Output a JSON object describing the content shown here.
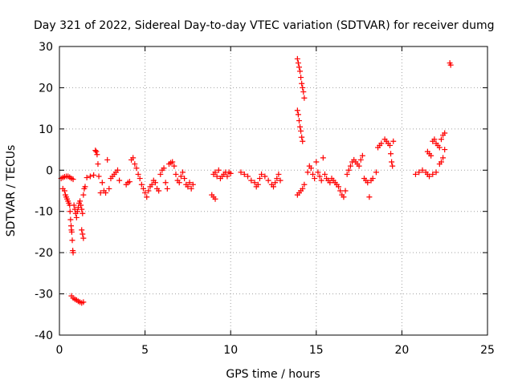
{
  "chart_data": {
    "type": "scatter",
    "title": "Day 321 of 2022, Sidereal Day-to-day VTEC variation (SDTVAR) for receiver dumg",
    "xlabel": "GPS time / hours",
    "ylabel": "SDTVAR / TECUs",
    "xlim": [
      0,
      25
    ],
    "ylim": [
      -40,
      30
    ],
    "xticks": [
      0,
      5,
      10,
      15,
      20,
      25
    ],
    "yticks": [
      -40,
      -30,
      -20,
      -10,
      0,
      10,
      20,
      30
    ],
    "grid": true,
    "marker": "+",
    "color": "#ff0000",
    "series": [
      {
        "name": "SDTVAR",
        "points": [
          [
            0.1,
            -2.0
          ],
          [
            0.2,
            -1.8
          ],
          [
            0.3,
            -1.6
          ],
          [
            0.4,
            -1.5
          ],
          [
            0.5,
            -1.5
          ],
          [
            0.6,
            -1.7
          ],
          [
            0.7,
            -2.0
          ],
          [
            0.8,
            -2.2
          ],
          [
            0.2,
            -4.5
          ],
          [
            0.3,
            -5.0
          ],
          [
            0.35,
            -6.0
          ],
          [
            0.4,
            -6.5
          ],
          [
            0.45,
            -7.0
          ],
          [
            0.5,
            -7.5
          ],
          [
            0.55,
            -8.0
          ],
          [
            0.6,
            -8.5
          ],
          [
            0.62,
            -10.0
          ],
          [
            0.65,
            -12.0
          ],
          [
            0.68,
            -13.5
          ],
          [
            0.7,
            -14.5
          ],
          [
            0.72,
            -15.0
          ],
          [
            0.75,
            -17.0
          ],
          [
            0.78,
            -19.5
          ],
          [
            0.8,
            -20.0
          ],
          [
            0.85,
            -8.5
          ],
          [
            0.9,
            -9.5
          ],
          [
            0.95,
            -10.5
          ],
          [
            1.0,
            -11.5
          ],
          [
            1.05,
            -10.0
          ],
          [
            1.1,
            -9.0
          ],
          [
            1.15,
            -8.0
          ],
          [
            1.2,
            -7.5
          ],
          [
            1.25,
            -8.5
          ],
          [
            1.3,
            -14.5
          ],
          [
            1.35,
            -15.5
          ],
          [
            1.4,
            -16.5
          ],
          [
            1.3,
            -9.5
          ],
          [
            1.35,
            -10.5
          ],
          [
            1.4,
            -6.0
          ],
          [
            1.45,
            -4.5
          ],
          [
            1.5,
            -4.0
          ],
          [
            0.7,
            -30.5
          ],
          [
            0.8,
            -31.0
          ],
          [
            0.9,
            -31.3
          ],
          [
            1.0,
            -31.5
          ],
          [
            1.1,
            -31.8
          ],
          [
            1.2,
            -32.0
          ],
          [
            1.3,
            -32.2
          ],
          [
            1.4,
            -32.0
          ],
          [
            1.6,
            -1.8
          ],
          [
            1.8,
            -1.5
          ],
          [
            2.0,
            -1.2
          ],
          [
            2.1,
            4.8
          ],
          [
            2.15,
            4.5
          ],
          [
            2.2,
            3.8
          ],
          [
            2.25,
            1.5
          ],
          [
            2.3,
            -1.5
          ],
          [
            2.4,
            -5.5
          ],
          [
            2.5,
            -3.0
          ],
          [
            2.6,
            -5.0
          ],
          [
            2.7,
            -5.5
          ],
          [
            2.8,
            2.5
          ],
          [
            2.9,
            -4.5
          ],
          [
            3.0,
            -2.0
          ],
          [
            3.1,
            -1.5
          ],
          [
            3.2,
            -1.0
          ],
          [
            3.3,
            -0.5
          ],
          [
            3.4,
            0.0
          ],
          [
            3.5,
            -2.5
          ],
          [
            3.9,
            -3.5
          ],
          [
            4.0,
            -3.0
          ],
          [
            4.1,
            -2.8
          ],
          [
            4.2,
            2.5
          ],
          [
            4.3,
            3.0
          ],
          [
            4.4,
            1.5
          ],
          [
            4.5,
            0.5
          ],
          [
            4.6,
            -1.0
          ],
          [
            4.7,
            -2.0
          ],
          [
            4.8,
            -3.5
          ],
          [
            4.9,
            -4.5
          ],
          [
            5.0,
            -5.5
          ],
          [
            5.1,
            -6.5
          ],
          [
            5.2,
            -5.0
          ],
          [
            5.3,
            -4.0
          ],
          [
            5.4,
            -3.5
          ],
          [
            5.5,
            -2.5
          ],
          [
            5.6,
            -3.0
          ],
          [
            5.7,
            -4.5
          ],
          [
            5.8,
            -5.0
          ],
          [
            5.9,
            -1.0
          ],
          [
            6.0,
            0.0
          ],
          [
            6.1,
            0.5
          ],
          [
            6.2,
            -3.0
          ],
          [
            6.3,
            -4.5
          ],
          [
            6.4,
            1.5
          ],
          [
            6.5,
            1.8
          ],
          [
            6.6,
            2.0
          ],
          [
            6.7,
            1.0
          ],
          [
            6.8,
            -1.0
          ],
          [
            6.9,
            -2.5
          ],
          [
            7.0,
            -3.0
          ],
          [
            7.1,
            -1.5
          ],
          [
            7.2,
            -0.5
          ],
          [
            7.3,
            -2.0
          ],
          [
            7.4,
            -3.5
          ],
          [
            7.5,
            -4.0
          ],
          [
            7.6,
            -3.0
          ],
          [
            7.7,
            -4.5
          ],
          [
            7.8,
            -3.5
          ],
          [
            8.9,
            -6.0
          ],
          [
            9.0,
            -6.5
          ],
          [
            9.1,
            -7.0
          ],
          [
            9.0,
            -1.0
          ],
          [
            9.1,
            -0.5
          ],
          [
            9.2,
            -1.5
          ],
          [
            9.3,
            0.0
          ],
          [
            9.4,
            -2.0
          ],
          [
            9.5,
            -1.5
          ],
          [
            9.6,
            -1.0
          ],
          [
            9.7,
            -0.5
          ],
          [
            9.8,
            -1.5
          ],
          [
            9.9,
            -0.5
          ],
          [
            10.0,
            -0.8
          ],
          [
            10.6,
            -0.5
          ],
          [
            10.8,
            -1.0
          ],
          [
            11.0,
            -1.5
          ],
          [
            11.2,
            -2.5
          ],
          [
            11.4,
            -3.0
          ],
          [
            11.5,
            -4.0
          ],
          [
            11.6,
            -3.5
          ],
          [
            11.7,
            -2.0
          ],
          [
            11.8,
            -1.0
          ],
          [
            12.0,
            -1.5
          ],
          [
            12.2,
            -2.5
          ],
          [
            12.4,
            -3.5
          ],
          [
            12.5,
            -4.0
          ],
          [
            12.6,
            -3.0
          ],
          [
            12.7,
            -2.0
          ],
          [
            12.8,
            -1.0
          ],
          [
            12.9,
            -2.5
          ],
          [
            13.9,
            27.0
          ],
          [
            13.95,
            26.0
          ],
          [
            14.0,
            25.0
          ],
          [
            14.05,
            24.0
          ],
          [
            14.1,
            22.5
          ],
          [
            14.15,
            21.0
          ],
          [
            14.2,
            20.0
          ],
          [
            14.25,
            19.0
          ],
          [
            14.3,
            17.5
          ],
          [
            13.9,
            14.5
          ],
          [
            13.95,
            13.5
          ],
          [
            14.0,
            12.0
          ],
          [
            14.05,
            10.5
          ],
          [
            14.1,
            9.5
          ],
          [
            14.15,
            8.0
          ],
          [
            14.2,
            7.0
          ],
          [
            13.9,
            -6.0
          ],
          [
            14.0,
            -5.5
          ],
          [
            14.1,
            -5.0
          ],
          [
            14.2,
            -4.5
          ],
          [
            14.3,
            -3.5
          ],
          [
            14.5,
            -0.5
          ],
          [
            14.6,
            1.0
          ],
          [
            14.7,
            0.5
          ],
          [
            14.8,
            -1.0
          ],
          [
            14.9,
            -2.0
          ],
          [
            15.0,
            2.0
          ],
          [
            15.1,
            -0.5
          ],
          [
            15.2,
            -1.5
          ],
          [
            15.3,
            -2.5
          ],
          [
            15.4,
            3.0
          ],
          [
            15.5,
            -1.0
          ],
          [
            15.6,
            -2.0
          ],
          [
            15.7,
            -2.5
          ],
          [
            15.8,
            -3.0
          ],
          [
            15.9,
            -2.0
          ],
          [
            16.0,
            -2.5
          ],
          [
            16.1,
            -3.0
          ],
          [
            16.2,
            -3.5
          ],
          [
            16.3,
            -4.0
          ],
          [
            16.4,
            -5.0
          ],
          [
            16.5,
            -6.0
          ],
          [
            16.6,
            -6.5
          ],
          [
            16.7,
            -5.0
          ],
          [
            16.8,
            -1.0
          ],
          [
            16.9,
            0.0
          ],
          [
            17.0,
            1.0
          ],
          [
            17.1,
            2.0
          ],
          [
            17.2,
            2.5
          ],
          [
            17.3,
            2.0
          ],
          [
            17.4,
            1.5
          ],
          [
            17.5,
            1.0
          ],
          [
            17.6,
            2.5
          ],
          [
            17.7,
            3.5
          ],
          [
            17.8,
            -2.0
          ],
          [
            17.9,
            -2.5
          ],
          [
            18.0,
            -3.0
          ],
          [
            18.1,
            -6.5
          ],
          [
            18.2,
            -2.5
          ],
          [
            18.3,
            -2.0
          ],
          [
            18.5,
            -0.5
          ],
          [
            18.6,
            5.5
          ],
          [
            18.7,
            6.0
          ],
          [
            18.8,
            6.5
          ],
          [
            19.0,
            7.5
          ],
          [
            19.1,
            7.0
          ],
          [
            19.2,
            6.5
          ],
          [
            19.3,
            6.0
          ],
          [
            19.35,
            4.0
          ],
          [
            19.4,
            2.0
          ],
          [
            19.45,
            1.0
          ],
          [
            19.5,
            7.0
          ],
          [
            20.8,
            -1.0
          ],
          [
            21.0,
            -0.5
          ],
          [
            21.2,
            0.0
          ],
          [
            21.4,
            -0.5
          ],
          [
            21.5,
            -1.0
          ],
          [
            21.6,
            -1.5
          ],
          [
            21.8,
            -1.0
          ],
          [
            22.0,
            -0.5
          ],
          [
            21.5,
            4.5
          ],
          [
            21.6,
            4.0
          ],
          [
            21.7,
            3.5
          ],
          [
            21.8,
            7.0
          ],
          [
            21.9,
            7.5
          ],
          [
            22.0,
            6.5
          ],
          [
            22.1,
            6.0
          ],
          [
            22.2,
            5.5
          ],
          [
            22.3,
            7.5
          ],
          [
            22.4,
            8.5
          ],
          [
            22.5,
            9.0
          ],
          [
            22.3,
            2.0
          ],
          [
            22.4,
            3.0
          ],
          [
            22.5,
            5.0
          ],
          [
            22.2,
            1.5
          ],
          [
            22.8,
            26.0
          ],
          [
            22.85,
            25.5
          ]
        ]
      }
    ]
  }
}
